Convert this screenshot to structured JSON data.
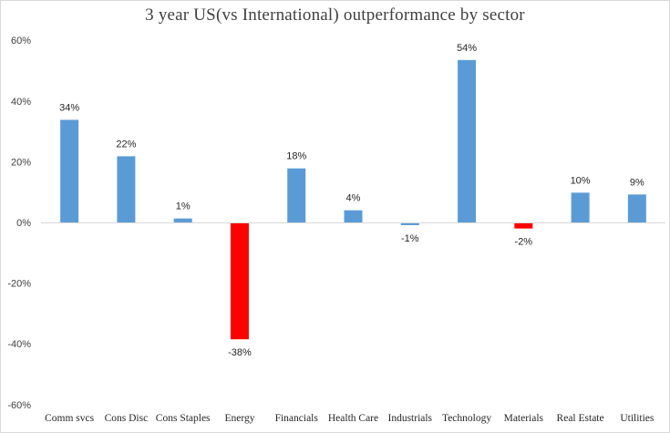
{
  "chart_data": {
    "type": "bar",
    "title": "3 year US(vs International)  outperformance by sector",
    "xlabel": "",
    "ylabel": "",
    "ylim": [
      -60,
      60
    ],
    "yticks": [
      60,
      40,
      20,
      0,
      -20,
      -40,
      -60
    ],
    "ytick_labels": [
      "60%",
      "40%",
      "20%",
      "0%",
      "-20%",
      "-40%",
      "-60%"
    ],
    "grid": false,
    "legend": "none",
    "categories": [
      "Comm svcs",
      "Cons Disc",
      "Cons Staples",
      "Energy",
      "Financials",
      "Health Care",
      "Industrials",
      "Technology",
      "Materials",
      "Real Estate",
      "Utilities"
    ],
    "values": [
      33.8,
      21.8,
      1.3,
      -38.5,
      17.8,
      4.0,
      -0.9,
      53.5,
      -2.0,
      9.8,
      9.2
    ],
    "data_labels": [
      "34%",
      "22%",
      "1%",
      "-38%",
      "18%",
      "4%",
      "-1%",
      "54%",
      "-2%",
      "10%",
      "9%"
    ],
    "colors": {
      "default": "#5b9bd5",
      "highlight": "#ff0000",
      "axis": "#d9d9d9"
    },
    "highlighted_categories": [
      "Energy",
      "Materials"
    ]
  }
}
